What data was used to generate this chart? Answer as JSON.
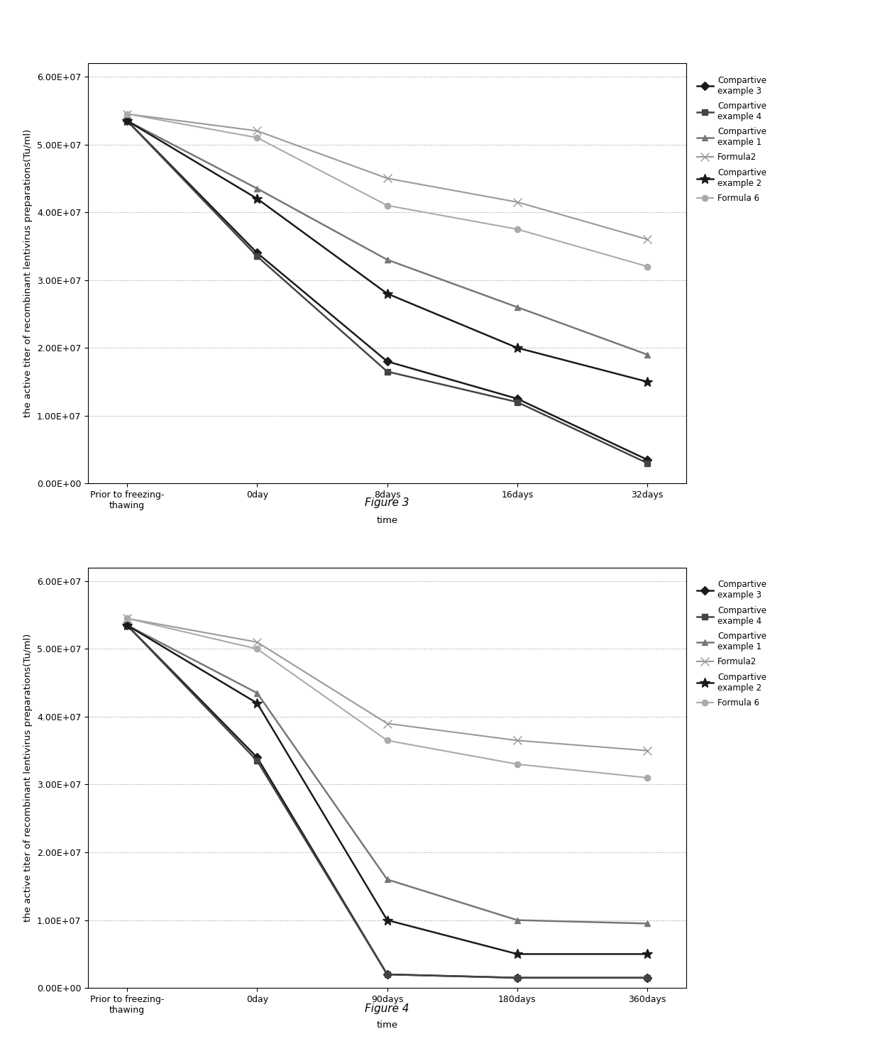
{
  "fig3": {
    "x_labels": [
      "Prior to freezing-\nthawing",
      "0day",
      "8days",
      "16days",
      "32days"
    ],
    "x_values": [
      0,
      1,
      2,
      3,
      4
    ],
    "series": [
      {
        "label": "Compartive\nexample 3",
        "color": "#1a1a1a",
        "marker": "D",
        "markersize": 6,
        "linewidth": 1.8,
        "markerfacecolor": "#1a1a1a",
        "values": [
          53500000.0,
          34000000.0,
          18000000.0,
          12500000.0,
          3500000.0
        ]
      },
      {
        "label": "Compartive\nexample 4",
        "color": "#444444",
        "marker": "s",
        "markersize": 6,
        "linewidth": 1.8,
        "markerfacecolor": "#444444",
        "values": [
          53500000.0,
          33500000.0,
          16500000.0,
          12000000.0,
          3000000.0
        ]
      },
      {
        "label": "Compartive\nexample 1",
        "color": "#777777",
        "marker": "^",
        "markersize": 6,
        "linewidth": 1.8,
        "markerfacecolor": "#777777",
        "values": [
          53500000.0,
          43500000.0,
          33000000.0,
          26000000.0,
          19000000.0
        ]
      },
      {
        "label": "Formula2",
        "color": "#999999",
        "marker": "x",
        "markersize": 8,
        "linewidth": 1.5,
        "markerfacecolor": "#999999",
        "values": [
          54500000.0,
          52000000.0,
          45000000.0,
          41500000.0,
          36000000.0
        ]
      },
      {
        "label": "Compartive\nexample 2",
        "color": "#1a1a1a",
        "marker": "*",
        "markersize": 10,
        "linewidth": 1.8,
        "markerfacecolor": "#1a1a1a",
        "values": [
          53500000.0,
          42000000.0,
          28000000.0,
          20000000.0,
          15000000.0
        ]
      },
      {
        "label": "Formula 6",
        "color": "#aaaaaa",
        "marker": "o",
        "markersize": 6,
        "linewidth": 1.5,
        "markerfacecolor": "#aaaaaa",
        "values": [
          54500000.0,
          51000000.0,
          41000000.0,
          37500000.0,
          32000000.0
        ]
      }
    ],
    "ylabel": "the active titer of recombinant lentivirus preparations(Tu/ml)",
    "xlabel": "time",
    "ylim": [
      0,
      62000000.0
    ],
    "yticks": [
      0,
      10000000.0,
      20000000.0,
      30000000.0,
      40000000.0,
      50000000.0,
      60000000.0
    ],
    "ytick_labels": [
      "0.00E+00",
      "1.00E+07",
      "2.00E+07",
      "3.00E+07",
      "4.00E+07",
      "5.00E+07",
      "6.00E+07"
    ],
    "figure_label": "Figure 3"
  },
  "fig4": {
    "x_labels": [
      "Prior to freezing-\nthawing",
      "0day",
      "90days",
      "180days",
      "360days"
    ],
    "x_values": [
      0,
      1,
      2,
      3,
      4
    ],
    "series": [
      {
        "label": "Compartive\nexample 3",
        "color": "#1a1a1a",
        "marker": "D",
        "markersize": 6,
        "linewidth": 1.8,
        "markerfacecolor": "#1a1a1a",
        "values": [
          53500000.0,
          34000000.0,
          2000000.0,
          1500000.0,
          1500000.0
        ]
      },
      {
        "label": "Compartive\nexample 4",
        "color": "#444444",
        "marker": "s",
        "markersize": 6,
        "linewidth": 1.8,
        "markerfacecolor": "#444444",
        "values": [
          53500000.0,
          33500000.0,
          2000000.0,
          1500000.0,
          1500000.0
        ]
      },
      {
        "label": "Compartive\nexample 1",
        "color": "#777777",
        "marker": "^",
        "markersize": 6,
        "linewidth": 1.8,
        "markerfacecolor": "#777777",
        "values": [
          53500000.0,
          43500000.0,
          16000000.0,
          10000000.0,
          9500000.0
        ]
      },
      {
        "label": "Formula2",
        "color": "#999999",
        "marker": "x",
        "markersize": 8,
        "linewidth": 1.5,
        "markerfacecolor": "#999999",
        "values": [
          54500000.0,
          51000000.0,
          39000000.0,
          36500000.0,
          35000000.0
        ]
      },
      {
        "label": "Compartive\nexample 2",
        "color": "#1a1a1a",
        "marker": "*",
        "markersize": 10,
        "linewidth": 1.8,
        "markerfacecolor": "#1a1a1a",
        "values": [
          53500000.0,
          42000000.0,
          10000000.0,
          5000000.0,
          5000000.0
        ]
      },
      {
        "label": "Formula 6",
        "color": "#aaaaaa",
        "marker": "o",
        "markersize": 6,
        "linewidth": 1.5,
        "markerfacecolor": "#aaaaaa",
        "values": [
          54500000.0,
          50000000.0,
          36500000.0,
          33000000.0,
          31000000.0
        ]
      }
    ],
    "ylabel": "the active titer of recombinant lentivirus preparations(Tu/ml)",
    "xlabel": "time",
    "ylim": [
      0,
      62000000.0
    ],
    "yticks": [
      0,
      10000000.0,
      20000000.0,
      30000000.0,
      40000000.0,
      50000000.0,
      60000000.0
    ],
    "ytick_labels": [
      "0.00E+00",
      "1.00E+07",
      "2.00E+07",
      "3.00E+07",
      "4.00E+07",
      "5.00E+07",
      "6.00E+07"
    ],
    "figure_label": "Figure 4"
  },
  "background_color": "#ffffff",
  "grid_color": "#bbbbbb",
  "legend_fontsize": 8.5,
  "axis_label_fontsize": 9.5,
  "tick_fontsize": 9
}
